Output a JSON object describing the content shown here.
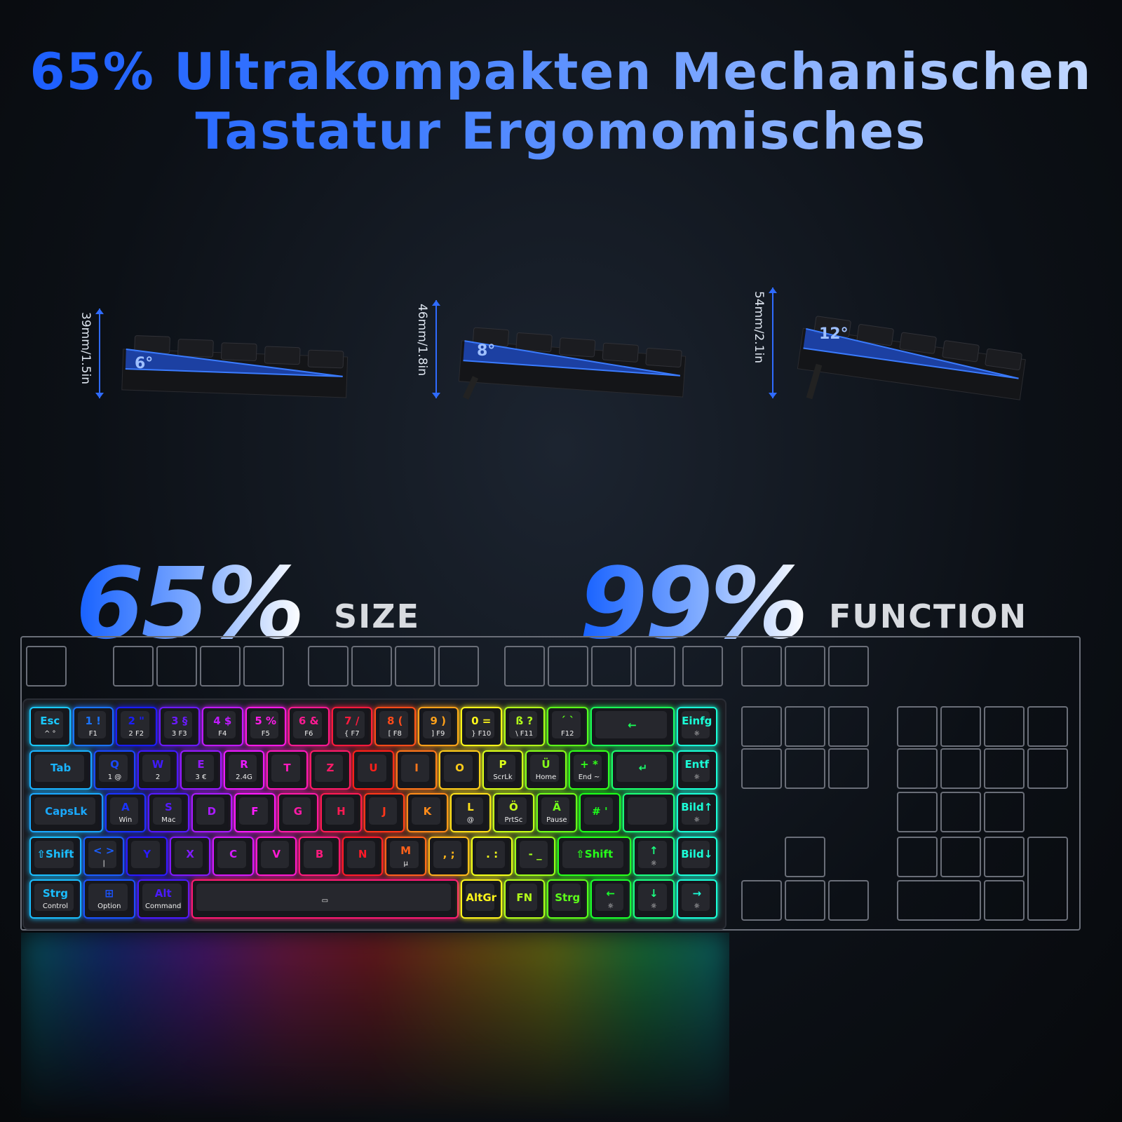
{
  "title": {
    "line1": "65% Ultrakompakten Mechanischen",
    "line2": "Tastatur Ergomomisches"
  },
  "profiles": [
    {
      "height": "39mm/1.5in",
      "angle": "6°"
    },
    {
      "height": "46mm/1.8in",
      "angle": "8°"
    },
    {
      "height": "54mm/2.1in",
      "angle": "12°"
    }
  ],
  "headline": {
    "size_pct": "65%",
    "size_label": "SIZE",
    "function_pct": "99%",
    "function_label": "FUNCTION"
  },
  "colors": {
    "title_blue": "#1a5cff",
    "keycap": "#26272d",
    "outline": "#6a6e78"
  },
  "keyboard": {
    "rows": [
      [
        {
          "t": "Esc",
          "s": "^ °"
        },
        {
          "t": "1 !",
          "s": "F1"
        },
        {
          "t": "2 \"",
          "s": "2 F2"
        },
        {
          "t": "3 §",
          "s": "3 F3"
        },
        {
          "t": "4 $",
          "s": "F4"
        },
        {
          "t": "5 %",
          "s": "F5"
        },
        {
          "t": "6 &",
          "s": "F6"
        },
        {
          "t": "7 /",
          "s": "{ F7"
        },
        {
          "t": "8 (",
          "s": "[ F8"
        },
        {
          "t": "9 )",
          "s": "] F9"
        },
        {
          "t": "0 =",
          "s": "} F10"
        },
        {
          "t": "ß ?",
          "s": "\\ F11"
        },
        {
          "t": "´ `",
          "s": "F12"
        },
        {
          "t": "←",
          "s": "",
          "w": 2
        },
        {
          "t": "Einfg",
          "s": "☼"
        }
      ],
      [
        {
          "t": "Tab",
          "s": "",
          "w": 1.5
        },
        {
          "t": "Q",
          "s": "1 @"
        },
        {
          "t": "W",
          "s": "2"
        },
        {
          "t": "E",
          "s": "3 €"
        },
        {
          "t": "R",
          "s": "2.4G"
        },
        {
          "t": "T",
          "s": ""
        },
        {
          "t": "Z",
          "s": ""
        },
        {
          "t": "U",
          "s": ""
        },
        {
          "t": "I",
          "s": ""
        },
        {
          "t": "O",
          "s": ""
        },
        {
          "t": "P",
          "s": "ScrLk"
        },
        {
          "t": "Ü",
          "s": "Home"
        },
        {
          "t": "+ *",
          "s": "End ~"
        },
        {
          "t": "↵",
          "s": "",
          "w": 1.5
        },
        {
          "t": "Entf",
          "s": "☼"
        }
      ],
      [
        {
          "t": "CapsLk",
          "s": "",
          "w": 1.75
        },
        {
          "t": "A",
          "s": "Win"
        },
        {
          "t": "S",
          "s": "Mac"
        },
        {
          "t": "D",
          "s": ""
        },
        {
          "t": "F",
          "s": ""
        },
        {
          "t": "G",
          "s": ""
        },
        {
          "t": "H",
          "s": ""
        },
        {
          "t": "J",
          "s": ""
        },
        {
          "t": "K",
          "s": ""
        },
        {
          "t": "L",
          "s": "@"
        },
        {
          "t": "Ö",
          "s": "PrtSc"
        },
        {
          "t": "Ä",
          "s": "Pause"
        },
        {
          "t": "# '",
          "s": ""
        },
        {
          "t": "",
          "s": "",
          "w": 1.25
        },
        {
          "t": "Bild↑",
          "s": "☼"
        }
      ],
      [
        {
          "t": "⇧Shift",
          "s": "",
          "w": 1.25
        },
        {
          "t": "< >",
          "s": "|"
        },
        {
          "t": "Y",
          "s": ""
        },
        {
          "t": "X",
          "s": ""
        },
        {
          "t": "C",
          "s": ""
        },
        {
          "t": "V",
          "s": ""
        },
        {
          "t": "B",
          "s": ""
        },
        {
          "t": "N",
          "s": ""
        },
        {
          "t": "M",
          "s": "µ"
        },
        {
          "t": ", ;",
          "s": ""
        },
        {
          "t": ". :",
          "s": ""
        },
        {
          "t": "- _",
          "s": ""
        },
        {
          "t": "⇧Shift",
          "s": "",
          "w": 1.75
        },
        {
          "t": "↑",
          "s": "☼"
        },
        {
          "t": "Bild↓",
          "s": ""
        }
      ],
      [
        {
          "t": "Strg",
          "s": "Control",
          "w": 1.25
        },
        {
          "t": "⊞",
          "s": "Option",
          "w": 1.25
        },
        {
          "t": "Alt",
          "s": "Command",
          "w": 1.25
        },
        {
          "t": "",
          "s": "▭",
          "w": 6.25
        },
        {
          "t": "AltGr",
          "s": ""
        },
        {
          "t": "FN",
          "s": ""
        },
        {
          "t": "Strg",
          "s": ""
        },
        {
          "t": "←",
          "s": "☼"
        },
        {
          "t": "↓",
          "s": "☼"
        },
        {
          "t": "→",
          "s": "☼"
        }
      ]
    ]
  }
}
